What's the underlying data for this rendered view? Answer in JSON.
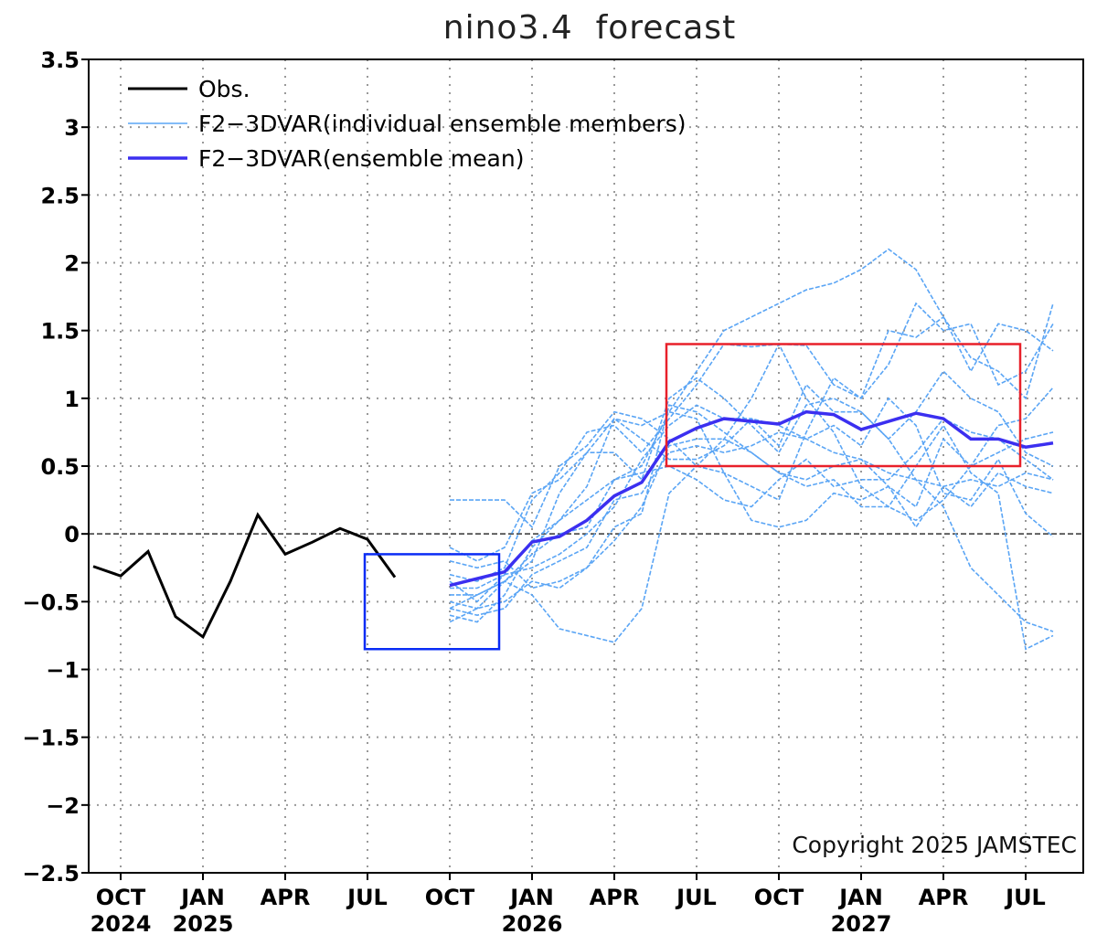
{
  "chart_data": {
    "type": "line",
    "title": "nino3.4  forecast",
    "ylim": [
      -2.5,
      3.5
    ],
    "yticks": [
      3.5,
      3,
      2.5,
      2,
      1.5,
      1,
      0.5,
      0,
      -0.5,
      -1,
      -1.5,
      -2,
      -2.5
    ],
    "ytick_labels": [
      "3.5",
      "3",
      "2.5",
      "2",
      "1.5",
      "1",
      "0.5",
      "0",
      "−0.5",
      "−1",
      "−1.5",
      "−2",
      "−2.5"
    ],
    "xlim": [
      "2024-08-15",
      "2027-09-01"
    ],
    "xticks": [
      {
        "month": "OCT",
        "year": "2024",
        "date": "2024-10"
      },
      {
        "month": "JAN",
        "year": "2025",
        "date": "2025-01"
      },
      {
        "month": "APR",
        "year": "",
        "date": "2025-04"
      },
      {
        "month": "JUL",
        "year": "",
        "date": "2025-07"
      },
      {
        "month": "OCT",
        "year": "",
        "date": "2025-10"
      },
      {
        "month": "JAN",
        "year": "2026",
        "date": "2026-01"
      },
      {
        "month": "APR",
        "year": "",
        "date": "2026-04"
      },
      {
        "month": "JUL",
        "year": "",
        "date": "2026-07"
      },
      {
        "month": "OCT",
        "year": "",
        "date": "2026-10"
      },
      {
        "month": "JAN",
        "year": "2027",
        "date": "2027-01"
      },
      {
        "month": "APR",
        "year": "",
        "date": "2027-04"
      },
      {
        "month": "JUL",
        "year": "",
        "date": "2027-07"
      }
    ],
    "grid": true,
    "legend_position": "top-left",
    "reference_line": 0,
    "series": [
      {
        "name": "Obs.",
        "color": "#000000",
        "style": "solid",
        "start": "2024-09",
        "values": [
          -0.24,
          -0.31,
          -0.13,
          -0.61,
          -0.76,
          -0.35,
          0.14,
          -0.15,
          -0.06,
          0.04,
          -0.04,
          -0.32
        ]
      },
      {
        "name": "F2−3DVAR(individual ensemble members)",
        "color": "#5aa5f5",
        "style": "dashed",
        "start": "2025-10",
        "members": [
          [
            -0.1,
            -0.2,
            -0.1,
            0.3,
            0.4,
            0.6,
            0.85,
            0.8,
            0.9,
            1.2,
            1.5,
            1.6,
            1.7,
            1.8,
            1.85,
            1.95,
            2.1,
            1.95,
            1.6,
            1.3,
            1.2,
            1.0,
            1.7
          ],
          [
            -0.3,
            -0.35,
            -0.25,
            0.25,
            0.45,
            0.75,
            0.8,
            0.6,
            0.85,
            1.1,
            1.4,
            1.38,
            1.4,
            1.39,
            1.1,
            1.0,
            1.25,
            1.7,
            1.5,
            1.55,
            1.1,
            1.2,
            1.55
          ],
          [
            0.25,
            0.25,
            0.25,
            0.05,
            0.5,
            0.65,
            0.9,
            0.85,
            0.7,
            0.5,
            0.45,
            0.35,
            0.25,
            0.75,
            1.15,
            1.0,
            1.5,
            1.45,
            1.6,
            1.2,
            1.55,
            1.5,
            1.35
          ],
          [
            -0.5,
            -0.55,
            -0.35,
            -0.45,
            -0.7,
            -0.75,
            -0.8,
            -0.55,
            0.3,
            0.5,
            0.7,
            1.0,
            1.4,
            1.0,
            0.75,
            0.35,
            0.2,
            0.5,
            0.8,
            0.45,
            0.3,
            -0.85,
            -0.75
          ],
          [
            -0.45,
            -0.45,
            -0.35,
            -0.2,
            0.3,
            0.6,
            0.6,
            0.4,
            1.0,
            1.15,
            1.0,
            0.8,
            0.6,
            0.95,
            1.0,
            0.9,
            0.7,
            0.4,
            0.2,
            -0.25,
            -0.45,
            -0.65,
            -0.72
          ],
          [
            -0.6,
            -0.65,
            -0.45,
            -0.1,
            0.1,
            0.25,
            0.4,
            0.5,
            0.9,
            0.85,
            0.45,
            0.1,
            0.05,
            0.1,
            0.3,
            0.25,
            0.35,
            0.2,
            0.7,
            0.5,
            0.8,
            0.85,
            1.08
          ],
          [
            -0.55,
            -0.6,
            -0.55,
            -0.3,
            -0.2,
            -0.1,
            0.25,
            0.3,
            0.6,
            0.65,
            0.6,
            0.65,
            0.75,
            0.7,
            0.6,
            0.55,
            0.45,
            0.4,
            0.35,
            0.4,
            0.35,
            0.45,
            0.4
          ],
          [
            -0.2,
            -0.25,
            -0.2,
            -0.4,
            -0.35,
            -0.25,
            -0.05,
            0.2,
            0.65,
            0.7,
            0.7,
            0.6,
            0.45,
            0.35,
            0.4,
            0.2,
            0.2,
            0.1,
            0.25,
            0.5,
            0.6,
            0.7,
            0.75
          ],
          [
            -0.65,
            -0.55,
            -0.5,
            -0.35,
            -0.4,
            -0.25,
            0.05,
            0.15,
            0.95,
            0.9,
            0.75,
            0.6,
            0.45,
            0.4,
            0.5,
            0.55,
            0.35,
            0.05,
            0.35,
            0.2,
            0.45,
            0.35,
            0.3
          ],
          [
            -0.4,
            -0.4,
            -0.3,
            -0.25,
            -0.15,
            0.0,
            0.2,
            0.55,
            0.8,
            0.95,
            0.85,
            0.85,
            0.65,
            1.1,
            0.9,
            0.9,
            0.7,
            0.9,
            1.2,
            1.0,
            0.9,
            0.6,
            0.5
          ],
          [
            -0.35,
            -0.5,
            -0.3,
            -0.05,
            0.1,
            0.35,
            0.85,
            0.7,
            0.55,
            0.55,
            0.65,
            0.85,
            0.8,
            0.7,
            0.8,
            0.65,
            1.0,
            0.8,
            0.3,
            0.25,
            0.55,
            0.15,
            -0.02
          ],
          [
            -0.55,
            -0.45,
            -0.35,
            -0.15,
            0.0,
            0.05,
            0.4,
            0.45,
            0.5,
            0.4,
            0.25,
            0.2,
            0.4,
            0.55,
            0.35,
            0.4,
            0.4,
            0.6,
            0.85,
            0.75,
            0.7,
            0.55,
            0.4
          ]
        ]
      },
      {
        "name": "F2−3DVAR(ensemble mean)",
        "color": "#3b2ff0",
        "style": "solid",
        "start": "2025-10",
        "values": [
          -0.38,
          -0.33,
          -0.28,
          -0.06,
          -0.02,
          0.1,
          0.28,
          0.38,
          0.68,
          0.78,
          0.85,
          0.83,
          0.81,
          0.9,
          0.88,
          0.77,
          0.83,
          0.89,
          0.85,
          0.7,
          0.7,
          0.64,
          0.67
        ]
      }
    ],
    "annotations": {
      "copyright": "Copyright 2025 JAMSTEC",
      "highlight_boxes": [
        {
          "color": "#e8202a",
          "from": "2026-06",
          "to": "2027-07",
          "ymin": 0.5,
          "ymax": 1.4
        },
        {
          "color": "#0a2cf5",
          "from": "2025-07",
          "to": "2025-12",
          "ymin": -0.85,
          "ymax": -0.15
        }
      ]
    }
  }
}
